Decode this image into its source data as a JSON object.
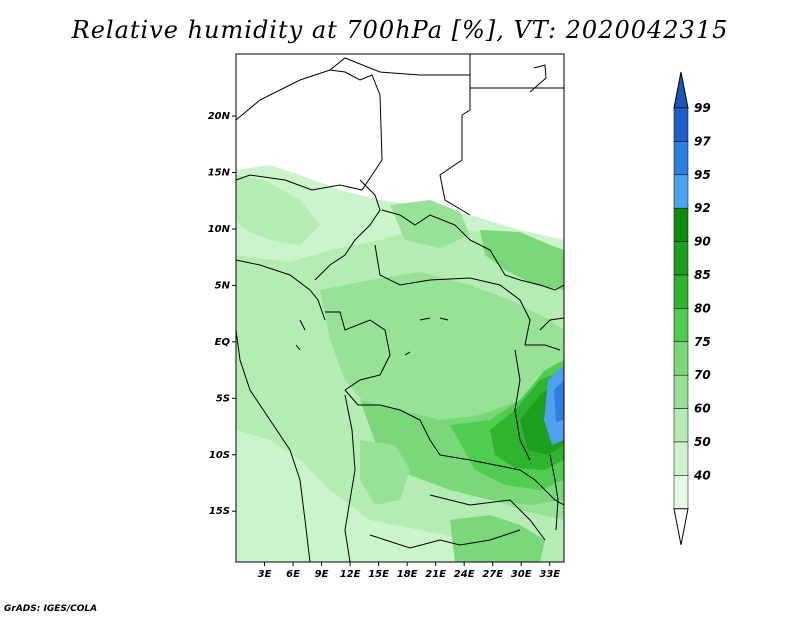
{
  "title": "Relative humidity at 700hPa [%], VT: 2020042315",
  "credit": "GrADS: IGES/COLA",
  "map": {
    "lon_range": [
      0,
      34.5
    ],
    "lat_range": [
      -19.5,
      25.5
    ],
    "lat_ticks": [
      {
        "value": 20,
        "label": "20N"
      },
      {
        "value": 15,
        "label": "15N"
      },
      {
        "value": 10,
        "label": "10N"
      },
      {
        "value": 5,
        "label": "5N"
      },
      {
        "value": 0,
        "label": "EQ"
      },
      {
        "value": -5,
        "label": "5S"
      },
      {
        "value": -10,
        "label": "10S"
      },
      {
        "value": -15,
        "label": "15S"
      }
    ],
    "lon_ticks": [
      {
        "value": 3,
        "label": "3E"
      },
      {
        "value": 6,
        "label": "6E"
      },
      {
        "value": 9,
        "label": "9E"
      },
      {
        "value": 12,
        "label": "12E"
      },
      {
        "value": 15,
        "label": "15E"
      },
      {
        "value": 18,
        "label": "18E"
      },
      {
        "value": 21,
        "label": "21E"
      },
      {
        "value": 24,
        "label": "24E"
      },
      {
        "value": 27,
        "label": "27E"
      },
      {
        "value": 30,
        "label": "30E"
      },
      {
        "value": 33,
        "label": "33E"
      }
    ]
  },
  "colorbar": {
    "levels": [
      {
        "label": "99",
        "color": "#1f5fc8"
      },
      {
        "label": "97",
        "color": "#2f7fe0"
      },
      {
        "label": "95",
        "color": "#4fa0ee"
      },
      {
        "label": "92",
        "color": "#0f8a0f"
      },
      {
        "label": "90",
        "color": "#1e9e1e"
      },
      {
        "label": "85",
        "color": "#30b430"
      },
      {
        "label": "80",
        "color": "#50cc50"
      },
      {
        "label": "75",
        "color": "#7ad87a"
      },
      {
        "label": "70",
        "color": "#98e298"
      },
      {
        "label": "60",
        "color": "#b4ecb4"
      },
      {
        "label": "50",
        "color": "#ccf4cc"
      },
      {
        "label": "40",
        "color": "#e4f9e4"
      }
    ],
    "top_color": "#1a55b8",
    "bottom_color": "#ffffff"
  }
}
